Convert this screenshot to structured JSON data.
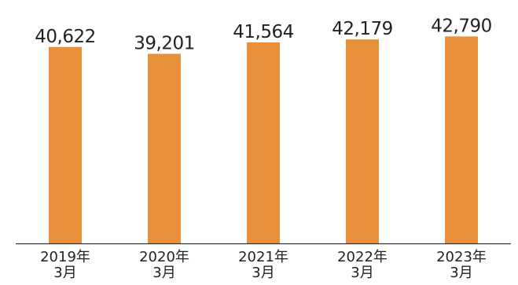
{
  "chart_data": {
    "type": "bar",
    "categories": [
      [
        "2019年",
        "3月"
      ],
      [
        "2020年",
        "3月"
      ],
      [
        "2021年",
        "3月"
      ],
      [
        "2022年",
        "3月"
      ],
      [
        "2023年",
        "3月"
      ]
    ],
    "values": [
      40622,
      39201,
      41564,
      42179,
      42790
    ],
    "value_labels": [
      "40,622",
      "39,201",
      "41,564",
      "42,179",
      "42,790"
    ],
    "ylim": [
      0,
      50000
    ],
    "grid": false,
    "legend": "none",
    "colors": {
      "bar": "#e8913a",
      "axis": "#333333",
      "text": "#222222"
    }
  }
}
